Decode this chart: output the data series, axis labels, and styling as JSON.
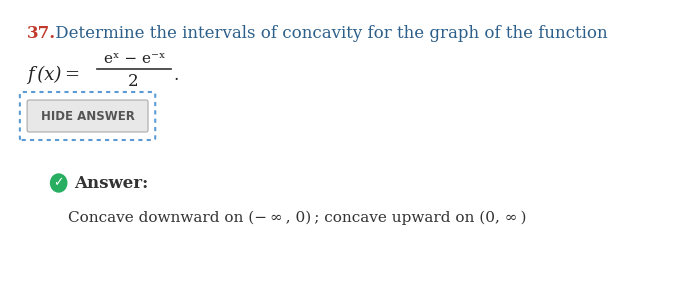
{
  "background_color": "#ffffff",
  "question_number": "37.",
  "question_number_color": "#c0392b",
  "question_text": " Determine the intervals of concavity for the graph of the function",
  "question_text_color": "#2c5f8a",
  "fx_label": "f (x) =",
  "numerator": "eˣ − e⁻ˣ",
  "denominator": "2",
  "fraction_line_color": "#333333",
  "button_text": "HIDE ANSWER",
  "button_text_color": "#555555",
  "button_bg": "#e8e8e8",
  "button_border_color": "#5b9bd5",
  "answer_label": "Answer:",
  "answer_label_color": "#333333",
  "answer_text": "Concave downward on (− ∞ , 0) ; concave upward on (0, ∞ )",
  "answer_text_color": "#333333",
  "checkmark_color": "#27ae60"
}
